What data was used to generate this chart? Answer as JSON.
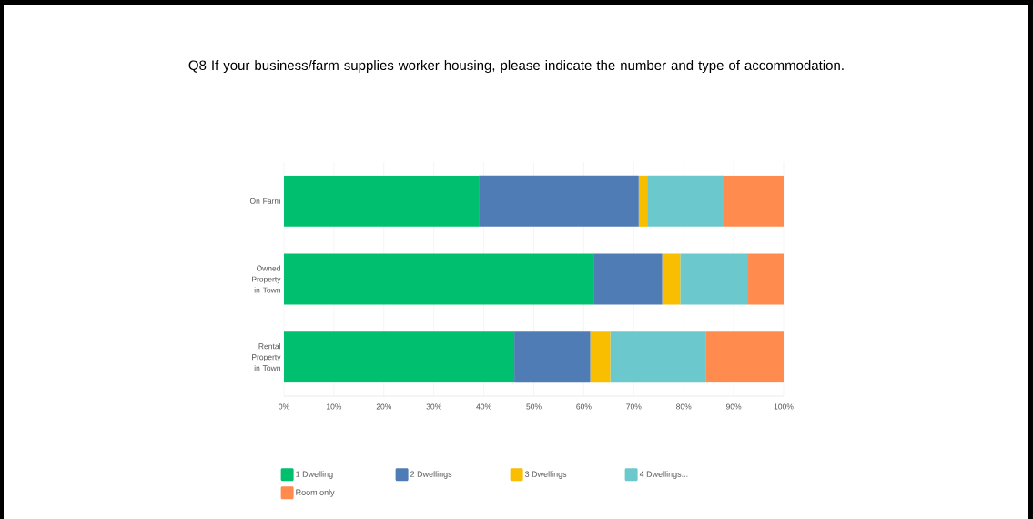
{
  "chart_data": {
    "type": "bar",
    "orientation": "horizontal",
    "stacked": true,
    "title": "Q8 If your business/farm supplies worker housing, please indicate the number and type of accommodation.",
    "categories": [
      "On Farm",
      "Owned Property in Town",
      "Rental Property in Town"
    ],
    "series": [
      {
        "name": "1 Dwelling",
        "color": "#00bf6f",
        "values": [
          39.0,
          62.1,
          46.1
        ]
      },
      {
        "name": "2 Dwellings",
        "color": "#507cb6",
        "values": [
          32.0,
          13.6,
          15.2
        ]
      },
      {
        "name": "3 Dwellings",
        "color": "#f9be00",
        "values": [
          1.7,
          3.6,
          4.0
        ]
      },
      {
        "name": "4 Dwellings...",
        "color": "#6bc8cd",
        "values": [
          15.3,
          13.6,
          19.2
        ]
      },
      {
        "name": "Room only",
        "color": "#ff8b4f",
        "values": [
          12.0,
          7.1,
          15.5
        ]
      }
    ],
    "xlim": [
      0,
      100
    ],
    "xticks": [
      {
        "value": 0,
        "label": "0%"
      },
      {
        "value": 10,
        "label": "10%"
      },
      {
        "value": 20,
        "label": "20%"
      },
      {
        "value": 30,
        "label": "30%"
      },
      {
        "value": 40,
        "label": "40%"
      },
      {
        "value": 50,
        "label": "50%"
      },
      {
        "value": 60,
        "label": "60%"
      },
      {
        "value": 70,
        "label": "70%"
      },
      {
        "value": 80,
        "label": "80%"
      },
      {
        "value": 90,
        "label": "90%"
      },
      {
        "value": 100,
        "label": "100%"
      }
    ],
    "grid": "x",
    "legend": "bottom"
  }
}
